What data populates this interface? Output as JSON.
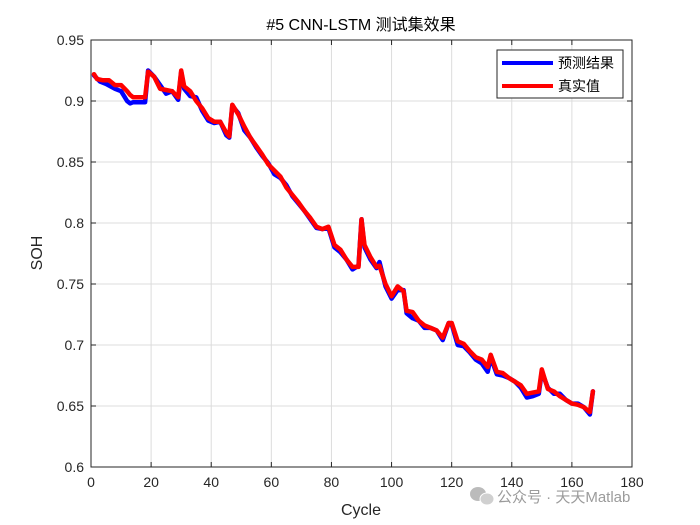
{
  "chart_data": {
    "type": "line",
    "title": "#5 CNN-LSTM 测试集效果",
    "xlabel": "Cycle",
    "ylabel": "SOH",
    "xlim": [
      0,
      180
    ],
    "ylim": [
      0.6,
      0.95
    ],
    "xticks": [
      0,
      20,
      40,
      60,
      80,
      100,
      120,
      140,
      160,
      180
    ],
    "yticks": [
      0.6,
      0.65,
      0.7,
      0.75,
      0.8,
      0.85,
      0.9,
      0.95
    ],
    "xtick_labels": [
      "0",
      "20",
      "40",
      "60",
      "80",
      "100",
      "120",
      "140",
      "160",
      "180"
    ],
    "ytick_labels": [
      "0.6",
      "0.65",
      "0.7",
      "0.75",
      "0.8",
      "0.85",
      "0.9",
      "0.95"
    ],
    "grid": true,
    "legend_position": "top-right",
    "series": [
      {
        "name": "预测结果",
        "color": "#0000ff",
        "x": [
          1,
          3,
          5,
          8,
          10,
          12,
          13,
          14,
          16,
          18,
          19,
          21,
          23,
          25,
          27,
          29,
          30,
          31,
          33,
          35,
          37,
          39,
          41,
          43,
          45,
          46,
          47,
          49,
          51,
          53,
          55,
          57,
          59,
          61,
          63,
          65,
          67,
          69,
          71,
          73,
          75,
          77,
          79,
          81,
          83,
          85,
          87,
          89,
          90,
          91,
          93,
          95,
          96,
          98,
          100,
          102,
          104,
          105,
          107,
          109,
          111,
          113,
          115,
          117,
          119,
          120,
          122,
          124,
          126,
          128,
          130,
          132,
          133,
          135,
          137,
          139,
          141,
          143,
          145,
          147,
          149,
          150,
          152,
          154,
          156,
          158,
          160,
          162,
          164,
          166,
          167
        ],
        "y": [
          0.921,
          0.916,
          0.914,
          0.91,
          0.908,
          0.9,
          0.898,
          0.899,
          0.899,
          0.899,
          0.925,
          0.92,
          0.913,
          0.906,
          0.908,
          0.901,
          0.924,
          0.91,
          0.904,
          0.903,
          0.892,
          0.884,
          0.882,
          0.883,
          0.872,
          0.87,
          0.896,
          0.89,
          0.876,
          0.87,
          0.862,
          0.855,
          0.849,
          0.84,
          0.837,
          0.831,
          0.822,
          0.816,
          0.81,
          0.803,
          0.796,
          0.795,
          0.796,
          0.78,
          0.776,
          0.77,
          0.762,
          0.765,
          0.803,
          0.78,
          0.77,
          0.763,
          0.768,
          0.748,
          0.738,
          0.745,
          0.745,
          0.726,
          0.722,
          0.72,
          0.714,
          0.714,
          0.712,
          0.704,
          0.718,
          0.717,
          0.7,
          0.699,
          0.694,
          0.688,
          0.685,
          0.678,
          0.69,
          0.676,
          0.675,
          0.673,
          0.67,
          0.665,
          0.657,
          0.658,
          0.66,
          0.678,
          0.665,
          0.66,
          0.66,
          0.655,
          0.652,
          0.652,
          0.649,
          0.643,
          0.662
        ]
      },
      {
        "name": "真实值",
        "color": "#ff0000",
        "x": [
          1,
          2,
          4,
          6,
          8,
          10,
          12,
          13,
          14,
          16,
          18,
          19,
          21,
          23,
          25,
          27,
          29,
          30,
          31,
          33,
          35,
          37,
          39,
          41,
          43,
          45,
          46,
          47,
          49,
          51,
          53,
          55,
          57,
          59,
          61,
          63,
          65,
          67,
          69,
          71,
          73,
          75,
          77,
          79,
          81,
          83,
          85,
          87,
          89,
          90,
          91,
          93,
          95,
          96,
          98,
          100,
          102,
          104,
          105,
          107,
          109,
          111,
          113,
          115,
          117,
          119,
          120,
          122,
          124,
          126,
          128,
          130,
          132,
          133,
          135,
          137,
          139,
          141,
          143,
          145,
          147,
          149,
          150,
          152,
          154,
          156,
          158,
          160,
          162,
          164,
          166,
          167
        ],
        "y": [
          0.922,
          0.918,
          0.917,
          0.917,
          0.913,
          0.913,
          0.908,
          0.905,
          0.903,
          0.903,
          0.903,
          0.924,
          0.92,
          0.91,
          0.909,
          0.908,
          0.903,
          0.925,
          0.912,
          0.908,
          0.9,
          0.894,
          0.886,
          0.883,
          0.883,
          0.874,
          0.871,
          0.897,
          0.889,
          0.879,
          0.87,
          0.863,
          0.856,
          0.848,
          0.843,
          0.838,
          0.829,
          0.823,
          0.817,
          0.81,
          0.804,
          0.797,
          0.795,
          0.797,
          0.782,
          0.778,
          0.77,
          0.764,
          0.764,
          0.803,
          0.782,
          0.772,
          0.764,
          0.765,
          0.75,
          0.74,
          0.748,
          0.744,
          0.728,
          0.727,
          0.72,
          0.716,
          0.714,
          0.712,
          0.706,
          0.718,
          0.718,
          0.703,
          0.701,
          0.695,
          0.69,
          0.688,
          0.682,
          0.692,
          0.678,
          0.677,
          0.673,
          0.67,
          0.667,
          0.66,
          0.661,
          0.662,
          0.68,
          0.664,
          0.662,
          0.658,
          0.655,
          0.652,
          0.651,
          0.649,
          0.645,
          0.662
        ]
      }
    ]
  },
  "watermark": {
    "icon": "wechat-icon",
    "text": "公众号 · 天天Matlab"
  }
}
